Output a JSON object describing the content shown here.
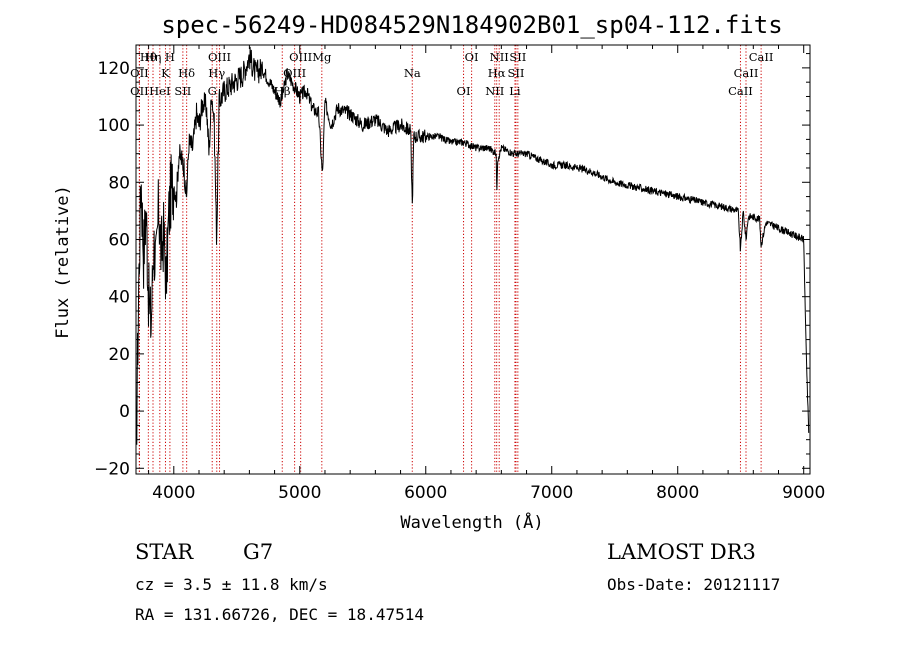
{
  "chart_data": {
    "type": "line",
    "title": "spec-56249-HD084529N184902B01_sp04-112.fits",
    "xlabel": "Wavelength (Å)",
    "ylabel": "Flux (relative)",
    "xlim": [
      3700,
      9050
    ],
    "ylim": [
      -22,
      128
    ],
    "xticks": [
      4000,
      5000,
      6000,
      7000,
      8000,
      9000
    ],
    "yticks": [
      -20,
      0,
      20,
      40,
      60,
      80,
      100,
      120
    ],
    "series": [
      {
        "name": "flux",
        "x": [
          3700,
          3720,
          3740,
          3760,
          3780,
          3800,
          3820,
          3840,
          3860,
          3880,
          3900,
          3920,
          3940,
          3960,
          3980,
          4000,
          4020,
          4040,
          4060,
          4080,
          4100,
          4120,
          4150,
          4180,
          4200,
          4230,
          4260,
          4280,
          4300,
          4320,
          4340,
          4360,
          4400,
          4450,
          4500,
          4550,
          4600,
          4650,
          4700,
          4750,
          4800,
          4850,
          4900,
          4950,
          5000,
          5050,
          5100,
          5150,
          5180,
          5200,
          5250,
          5300,
          5400,
          5500,
          5600,
          5700,
          5800,
          5880,
          5893,
          5905,
          6000,
          6100,
          6200,
          6300,
          6400,
          6500,
          6560,
          6563,
          6570,
          6600,
          6700,
          6800,
          6900,
          7000,
          7100,
          7200,
          7300,
          7400,
          7500,
          7600,
          7700,
          7800,
          7900,
          8000,
          8100,
          8200,
          8300,
          8400,
          8480,
          8498,
          8520,
          8542,
          8560,
          8600,
          8650,
          8662,
          8700,
          8750,
          8800,
          8850,
          8900,
          8950,
          9000,
          9020,
          9040
        ],
        "y": [
          -18,
          40,
          82,
          55,
          70,
          40,
          30,
          60,
          50,
          72,
          55,
          62,
          45,
          68,
          78,
          80,
          74,
          90,
          88,
          86,
          74,
          94,
          92,
          104,
          100,
          108,
          106,
          90,
          112,
          102,
          60,
          108,
          112,
          114,
          116,
          118,
          124,
          118,
          120,
          116,
          112,
          108,
          118,
          114,
          110,
          112,
          106,
          104,
          82,
          108,
          100,
          106,
          104,
          100,
          102,
          98,
          100,
          98,
          72,
          96,
          96,
          96,
          94,
          94,
          92,
          92,
          90,
          74,
          88,
          92,
          90,
          90,
          88,
          86,
          86,
          85,
          84,
          82,
          80,
          79,
          78,
          77,
          76,
          75,
          74,
          73,
          72,
          71,
          70,
          56,
          70,
          60,
          68,
          68,
          67,
          58,
          66,
          65,
          64,
          63,
          62,
          61,
          60,
          20,
          -8
        ]
      }
    ],
    "spectral_lines": [
      {
        "label": "Hθ",
        "wavelength": 3798
      },
      {
        "label": "OII",
        "wavelength": 3727
      },
      {
        "label": "OII",
        "wavelength": 3727
      },
      {
        "label": "Hη",
        "wavelength": 3835
      },
      {
        "label": "K",
        "wavelength": 3934
      },
      {
        "label": "HeI",
        "wavelength": 3889
      },
      {
        "label": "H",
        "wavelength": 3969
      },
      {
        "label": "Hδ",
        "wavelength": 4102
      },
      {
        "label": "SII",
        "wavelength": 4072
      },
      {
        "label": "OIII",
        "wavelength": 4363
      },
      {
        "label": "Hγ",
        "wavelength": 4341
      },
      {
        "label": "G",
        "wavelength": 4305
      },
      {
        "label": "OIII",
        "wavelength": 5007
      },
      {
        "label": "OIII",
        "wavelength": 4959
      },
      {
        "label": "Hβ",
        "wavelength": 4861
      },
      {
        "label": "Mg",
        "wavelength": 5175
      },
      {
        "label": "Na",
        "wavelength": 5893
      },
      {
        "label": "OI",
        "wavelength": 6300
      },
      {
        "label": "OI",
        "wavelength": 6364
      },
      {
        "label": "Hα",
        "wavelength": 6563
      },
      {
        "label": "NII",
        "wavelength": 6548
      },
      {
        "label": "NII",
        "wavelength": 6583
      },
      {
        "label": "SII",
        "wavelength": 6716
      },
      {
        "label": "Li",
        "wavelength": 6708
      },
      {
        "label": "SII",
        "wavelength": 6731
      },
      {
        "label": "CaII",
        "wavelength": 8542
      },
      {
        "label": "CaII",
        "wavelength": 8498
      },
      {
        "label": "CaII",
        "wavelength": 8662
      }
    ],
    "line_color": "#cc0000"
  },
  "info": {
    "object_class": "STAR",
    "subclass": "G7",
    "survey": "LAMOST DR3",
    "cz": "cz = 3.5 ± 11.8 km/s",
    "obs_date": "Obs-Date: 20121117",
    "radec": "RA = 131.66726, DEC =  18.47514"
  }
}
